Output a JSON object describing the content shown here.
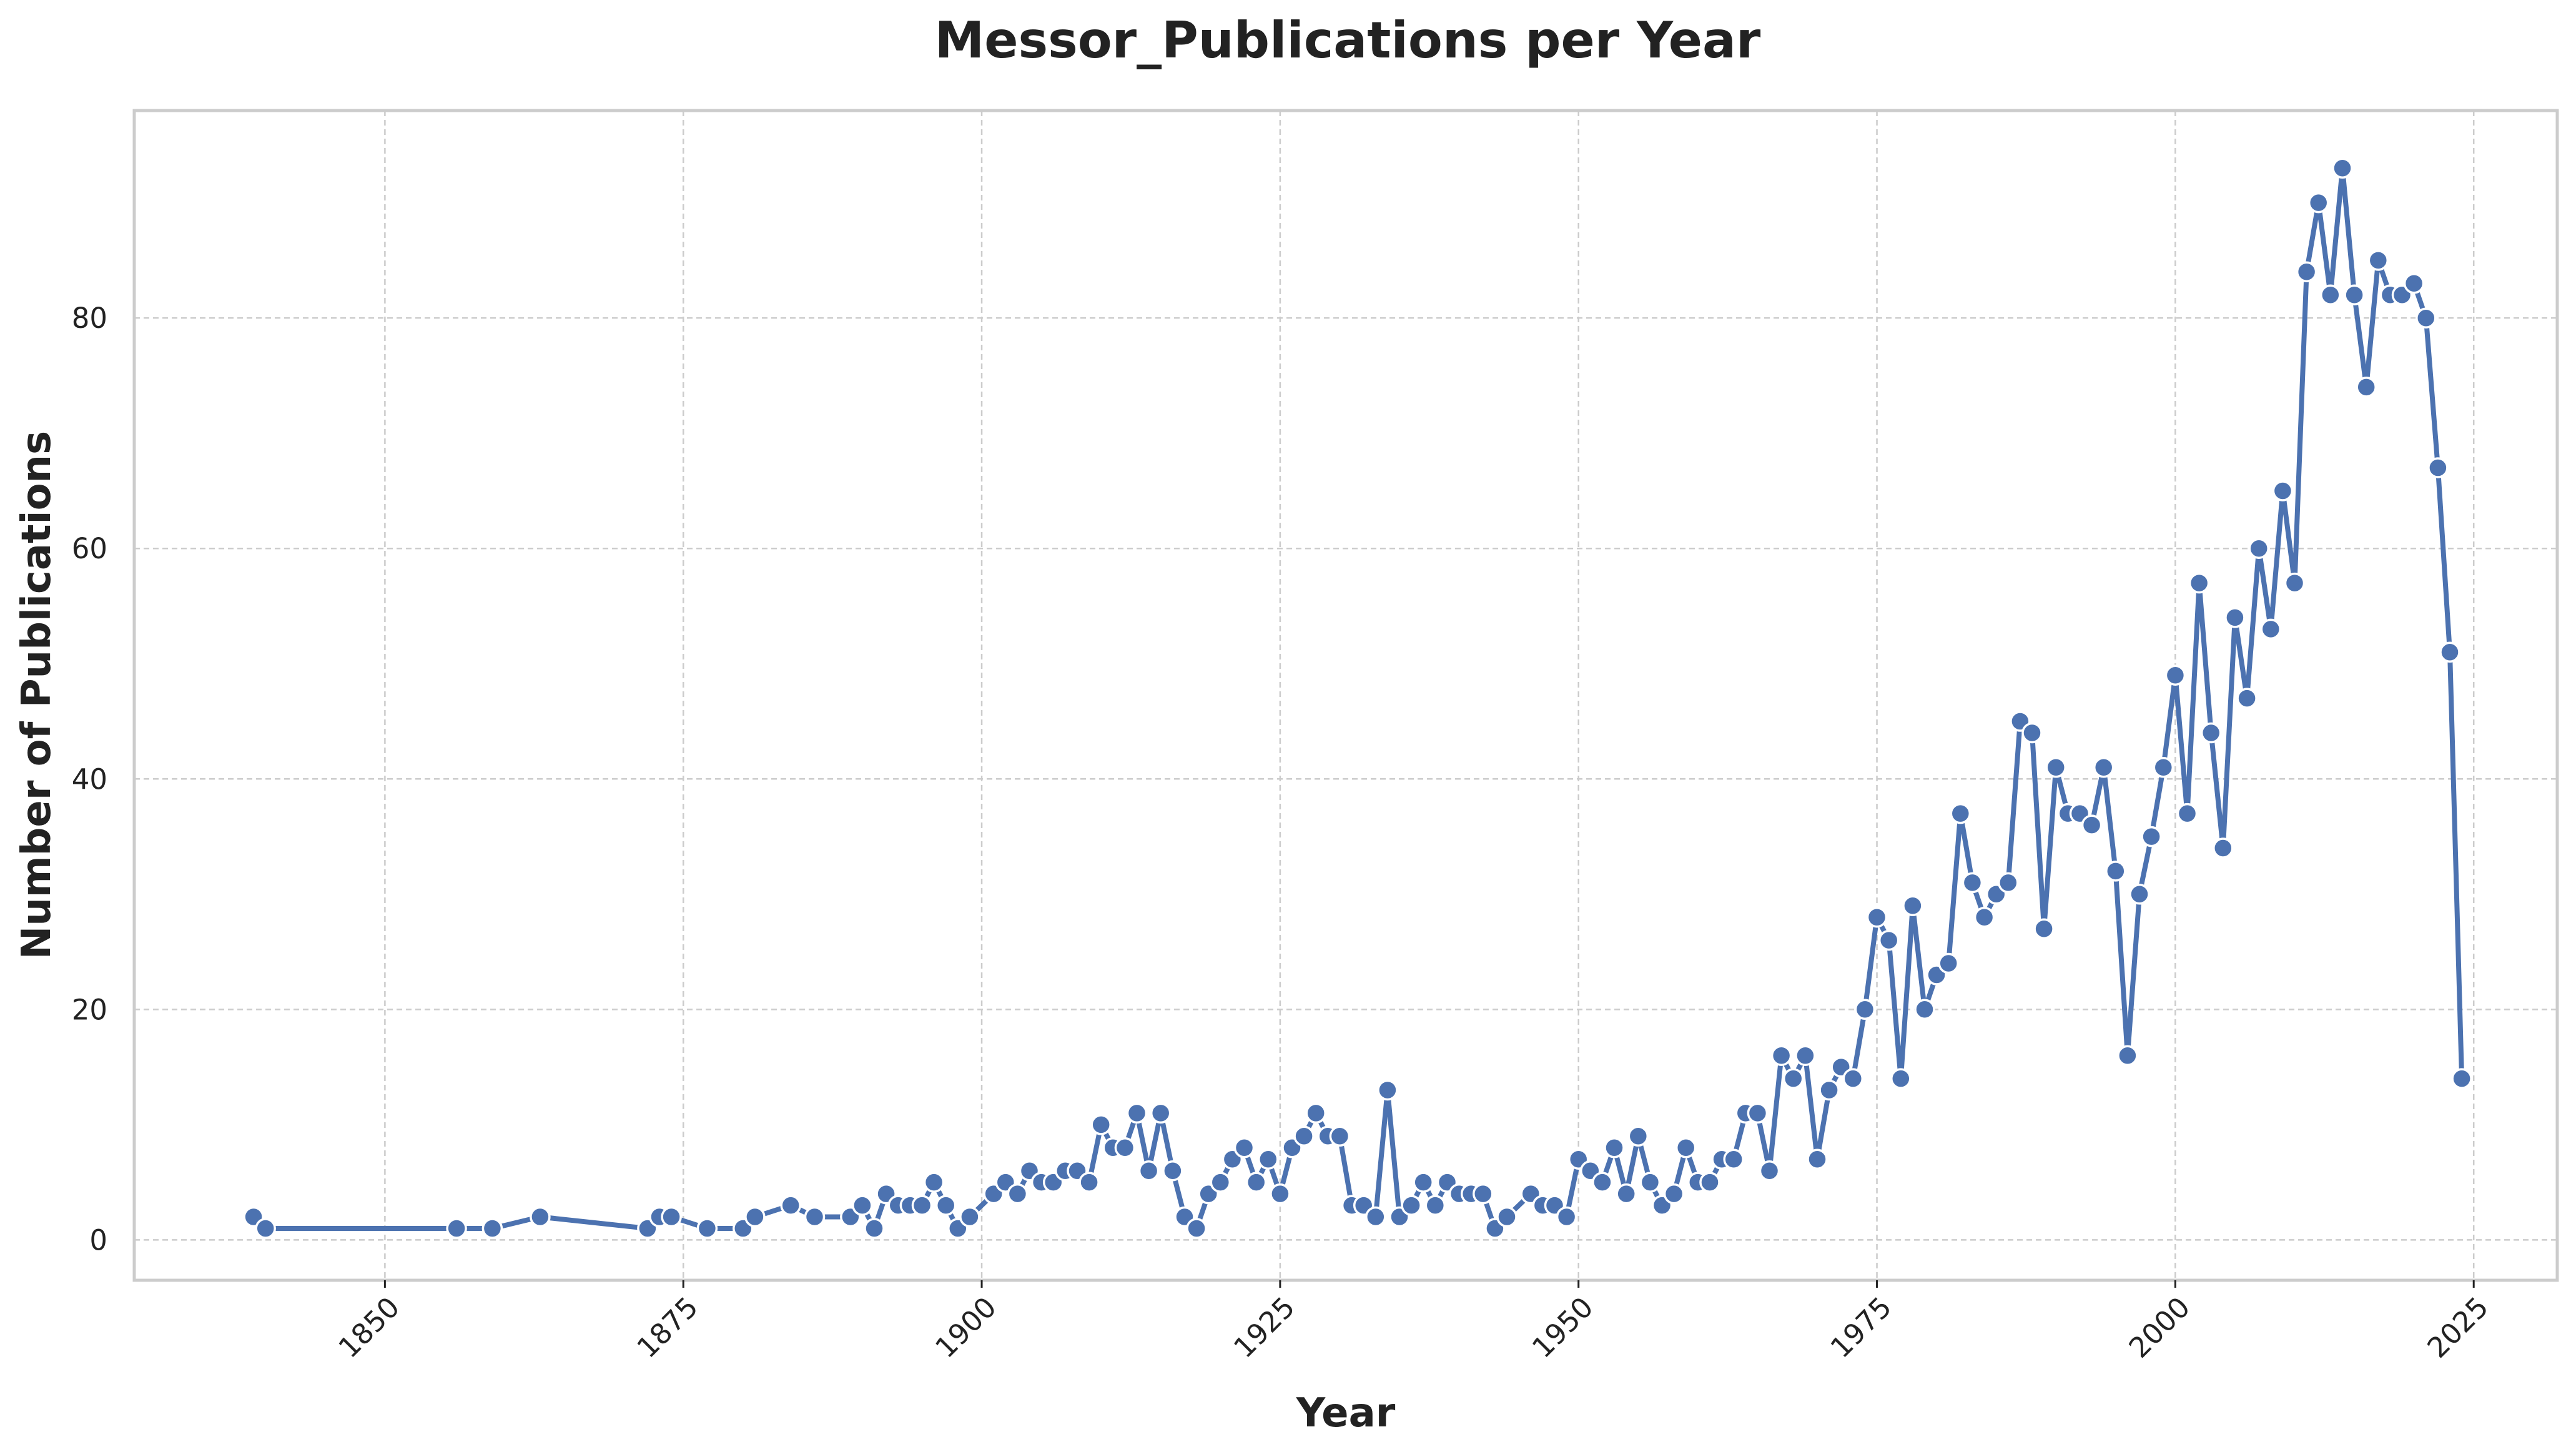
{
  "chart_data": {
    "type": "line",
    "title": "Messor_Publications per Year",
    "xlabel": "Year",
    "ylabel": "Number of Publications",
    "xlim": [
      1829,
      2032
    ],
    "ylim": [
      -3.5,
      98
    ],
    "xticks": [
      1850,
      1875,
      1900,
      1925,
      1950,
      1975,
      2000,
      2025
    ],
    "yticks": [
      0,
      20,
      40,
      60,
      80
    ],
    "grid": true,
    "legend": "none",
    "series_color": "#4c72b0",
    "x": [
      1839,
      1840,
      1856,
      1859,
      1863,
      1872,
      1873,
      1874,
      1877,
      1880,
      1881,
      1884,
      1886,
      1889,
      1890,
      1891,
      1892,
      1893,
      1894,
      1895,
      1896,
      1897,
      1898,
      1899,
      1901,
      1902,
      1903,
      1904,
      1905,
      1906,
      1907,
      1908,
      1909,
      1910,
      1911,
      1912,
      1913,
      1914,
      1915,
      1916,
      1917,
      1918,
      1919,
      1920,
      1921,
      1922,
      1923,
      1924,
      1925,
      1926,
      1927,
      1928,
      1929,
      1930,
      1931,
      1932,
      1933,
      1934,
      1935,
      1936,
      1937,
      1938,
      1939,
      1940,
      1941,
      1942,
      1943,
      1944,
      1946,
      1947,
      1948,
      1949,
      1950,
      1951,
      1952,
      1953,
      1954,
      1955,
      1956,
      1957,
      1958,
      1959,
      1960,
      1961,
      1962,
      1963,
      1964,
      1965,
      1966,
      1967,
      1968,
      1969,
      1970,
      1971,
      1972,
      1973,
      1974,
      1975,
      1976,
      1977,
      1978,
      1979,
      1980,
      1981,
      1982,
      1983,
      1984,
      1985,
      1986,
      1987,
      1988,
      1989,
      1990,
      1991,
      1992,
      1993,
      1994,
      1995,
      1996,
      1997,
      1998,
      1999,
      2000,
      2001,
      2002,
      2003,
      2004,
      2005,
      2006,
      2007,
      2008,
      2009,
      2010,
      2011,
      2012,
      2013,
      2014,
      2015,
      2016,
      2017,
      2018,
      2019,
      2020,
      2021,
      2022,
      2023,
      2024
    ],
    "y": [
      2,
      1,
      1,
      1,
      2,
      1,
      2,
      2,
      1,
      1,
      2,
      3,
      2,
      2,
      3,
      1,
      4,
      3,
      3,
      3,
      5,
      3,
      1,
      2,
      4,
      5,
      4,
      6,
      5,
      5,
      6,
      6,
      5,
      10,
      8,
      8,
      11,
      6,
      11,
      6,
      2,
      1,
      4,
      5,
      7,
      8,
      5,
      7,
      4,
      8,
      9,
      11,
      9,
      9,
      3,
      3,
      2,
      13,
      2,
      3,
      5,
      3,
      5,
      4,
      4,
      4,
      1,
      2,
      4,
      3,
      3,
      2,
      7,
      6,
      5,
      8,
      4,
      9,
      5,
      3,
      4,
      8,
      5,
      5,
      7,
      7,
      11,
      11,
      6,
      16,
      14,
      16,
      7,
      13,
      15,
      14,
      20,
      28,
      26,
      14,
      29,
      20,
      23,
      24,
      37,
      31,
      28,
      30,
      31,
      45,
      44,
      27,
      41,
      37,
      37,
      36,
      41,
      32,
      16,
      30,
      35,
      41,
      49,
      37,
      57,
      44,
      34,
      54,
      47,
      60,
      53,
      65,
      57,
      84,
      90,
      82,
      93,
      82,
      74,
      85,
      82,
      82,
      83,
      80,
      67,
      51,
      14
    ]
  }
}
